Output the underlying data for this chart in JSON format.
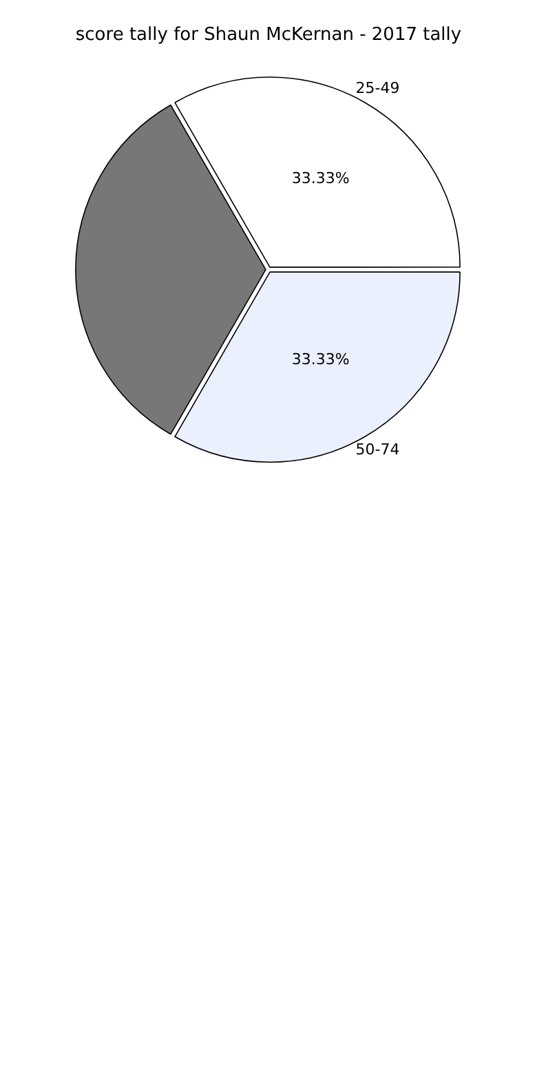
{
  "chart_data": {
    "type": "pie",
    "title": "score tally for Shaun McKernan - 2017 tally",
    "categories": [
      "25-49",
      "50-74",
      null
    ],
    "values": [
      33.33,
      33.33,
      33.33
    ],
    "colors": [
      "#ffffff",
      "#eaf0fe",
      "#777777"
    ],
    "value_labels": [
      "33.33%",
      "33.33%",
      null
    ],
    "legend": false
  }
}
